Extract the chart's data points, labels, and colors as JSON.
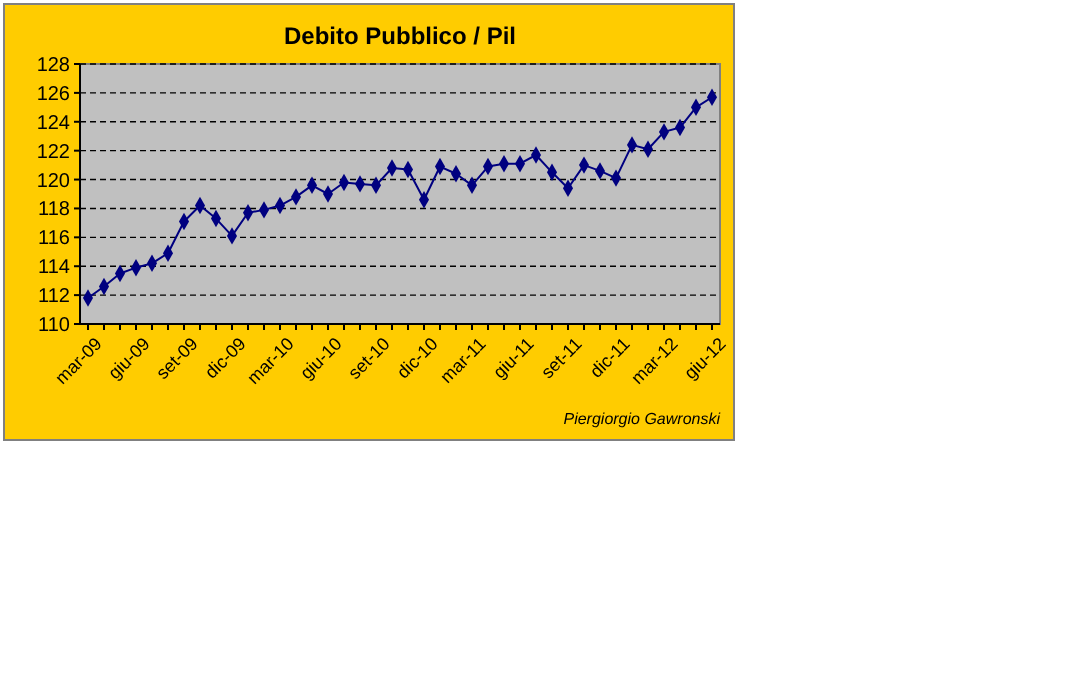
{
  "chart_data": {
    "type": "line",
    "title": "Debito Pubblico / Pil",
    "categories": [
      "mar-09",
      null,
      null,
      "giu-09",
      null,
      null,
      "set-09",
      null,
      null,
      "dic-09",
      null,
      null,
      "mar-10",
      null,
      null,
      "giu-10",
      null,
      null,
      "set-10",
      null,
      null,
      "dic-10",
      null,
      null,
      "mar-11",
      null,
      null,
      "giu-11",
      null,
      null,
      "set-11",
      null,
      null,
      "dic-11",
      null,
      null,
      "mar-12",
      null,
      null,
      "giu-12"
    ],
    "series": [
      {
        "color": "#000080",
        "values": [
          111.8,
          112.6,
          113.5,
          113.9,
          114.2,
          114.9,
          117.1,
          118.2,
          117.3,
          116.1,
          117.7,
          117.9,
          118.2,
          118.8,
          119.6,
          119.0,
          119.8,
          119.7,
          119.6,
          120.8,
          120.7,
          118.6,
          120.9,
          120.4,
          119.6,
          120.9,
          121.1,
          121.1,
          121.7,
          120.5,
          119.4,
          121.0,
          120.6,
          120.1,
          122.4,
          122.1,
          123.3,
          123.6,
          125.0,
          125.7
        ]
      }
    ],
    "ylim": [
      110,
      128
    ],
    "yticks": [
      110,
      112,
      114,
      116,
      118,
      120,
      122,
      124,
      126,
      128
    ],
    "grid": "y",
    "marker": "diamond",
    "line_style": "solid",
    "annotations": [
      "Piergiorgio Gawronski"
    ]
  }
}
